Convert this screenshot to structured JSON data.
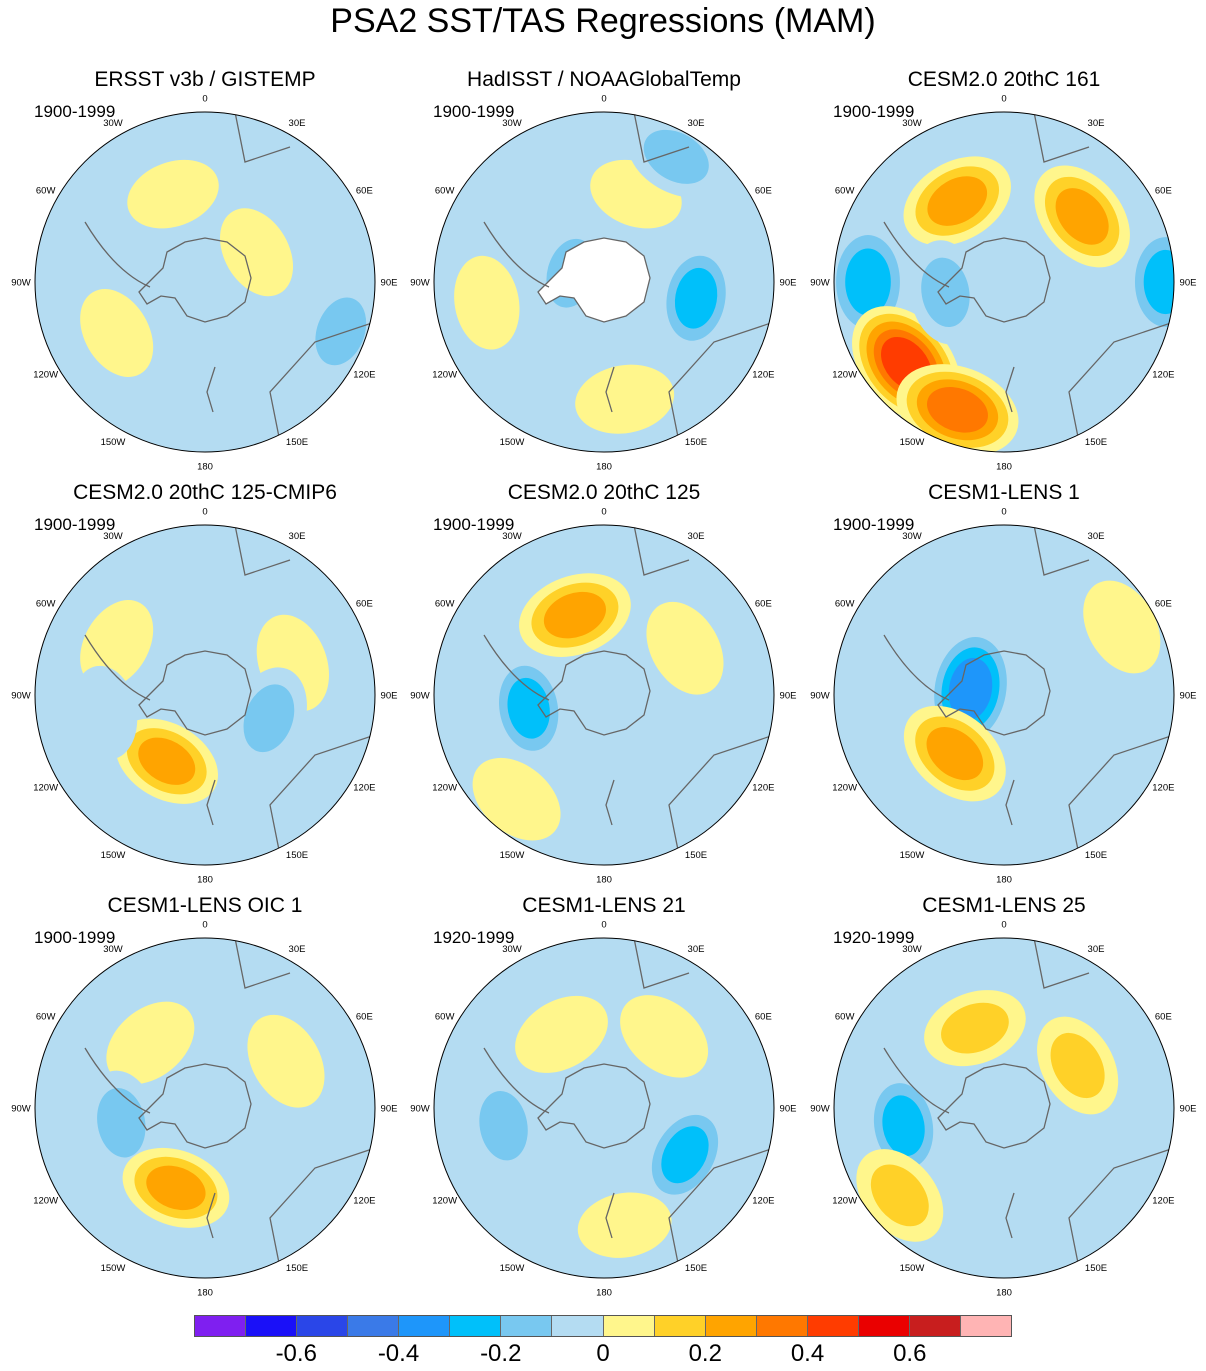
{
  "title": "PSA2 SST/TAS Regressions (MAM)",
  "panels": [
    {
      "title": "ERSST v3b / GISTEMP",
      "period": "1900-1999",
      "blobs": [
        {
          "lon": -20,
          "r": 0.55,
          "v": 0.1
        },
        {
          "lon": 60,
          "r": 0.35,
          "v": 0.1
        },
        {
          "lon": -120,
          "r": 0.6,
          "v": 0.1
        },
        {
          "lon": 110,
          "r": 0.85,
          "v": -0.2
        },
        {
          "lon": 170,
          "r": 0.8,
          "v": -0.1
        }
      ]
    },
    {
      "title": "HadISST / NOAAGlobalTemp",
      "period": "1900-1999",
      "blobs": [
        {
          "lon": 20,
          "r": 0.55,
          "v": 0.1
        },
        {
          "lon": 30,
          "r": 0.85,
          "v": -0.2
        },
        {
          "lon": 100,
          "r": 0.55,
          "v": -0.25
        },
        {
          "lon": -100,
          "r": 0.7,
          "v": 0.1
        },
        {
          "lon": 170,
          "r": 0.7,
          "v": 0.15
        },
        {
          "lon": -75,
          "r": 0.2,
          "v": -0.2
        }
      ]
    },
    {
      "title": "CESM2.0 20thC 161",
      "period": "1900-1999",
      "blobs": [
        {
          "lon": -30,
          "r": 0.55,
          "v": 0.3
        },
        {
          "lon": 50,
          "r": 0.6,
          "v": 0.3
        },
        {
          "lon": -90,
          "r": 0.8,
          "v": -0.35
        },
        {
          "lon": -130,
          "r": 0.75,
          "v": 0.45
        },
        {
          "lon": -160,
          "r": 0.8,
          "v": 0.4
        },
        {
          "lon": 90,
          "r": 0.95,
          "v": -0.3
        },
        {
          "lon": -100,
          "r": 0.35,
          "v": -0.2
        }
      ]
    },
    {
      "title": "CESM2.0 20thC 125-CMIP6",
      "period": "1900-1999",
      "blobs": [
        {
          "lon": -60,
          "r": 0.6,
          "v": 0.1
        },
        {
          "lon": 70,
          "r": 0.55,
          "v": 0.15
        },
        {
          "lon": -150,
          "r": 0.45,
          "v": 0.25
        },
        {
          "lon": 110,
          "r": 0.4,
          "v": -0.2
        },
        {
          "lon": -100,
          "r": 0.6,
          "v": -0.1
        },
        {
          "lon": 160,
          "r": 0.8,
          "v": -0.1
        }
      ]
    },
    {
      "title": "CESM2.0 20thC 125",
      "period": "1900-1999",
      "blobs": [
        {
          "lon": -20,
          "r": 0.5,
          "v": 0.3
        },
        {
          "lon": 60,
          "r": 0.55,
          "v": 0.15
        },
        {
          "lon": -100,
          "r": 0.45,
          "v": -0.25
        },
        {
          "lon": -140,
          "r": 0.8,
          "v": 0.15
        },
        {
          "lon": 90,
          "r": 0.9,
          "v": -0.1
        }
      ]
    },
    {
      "title": "CESM1-LENS 1",
      "period": "1900-1999",
      "blobs": [
        {
          "lon": -80,
          "r": 0.2,
          "v": -0.4
        },
        {
          "lon": -140,
          "r": 0.45,
          "v": 0.3
        },
        {
          "lon": 60,
          "r": 0.8,
          "v": 0.15
        },
        {
          "lon": -80,
          "r": 0.7,
          "v": -0.1
        },
        {
          "lon": 140,
          "r": 0.75,
          "v": -0.15
        }
      ]
    },
    {
      "title": "CESM1-LENS OIC 1",
      "period": "1900-1999",
      "blobs": [
        {
          "lon": -40,
          "r": 0.5,
          "v": 0.15
        },
        {
          "lon": -100,
          "r": 0.5,
          "v": -0.2
        },
        {
          "lon": -160,
          "r": 0.5,
          "v": 0.25
        },
        {
          "lon": 60,
          "r": 0.55,
          "v": 0.15
        },
        {
          "lon": 110,
          "r": 0.8,
          "v": -0.1
        }
      ]
    },
    {
      "title": "CESM1-LENS 21",
      "period": "1920-1999",
      "blobs": [
        {
          "lon": -30,
          "r": 0.5,
          "v": 0.15
        },
        {
          "lon": -100,
          "r": 0.6,
          "v": -0.2
        },
        {
          "lon": 120,
          "r": 0.55,
          "v": -0.25
        },
        {
          "lon": 40,
          "r": 0.55,
          "v": 0.15
        },
        {
          "lon": 170,
          "r": 0.7,
          "v": 0.1
        }
      ]
    },
    {
      "title": "CESM1-LENS 25",
      "period": "1920-1999",
      "blobs": [
        {
          "lon": -20,
          "r": 0.5,
          "v": 0.2
        },
        {
          "lon": -100,
          "r": 0.6,
          "v": -0.25
        },
        {
          "lon": -130,
          "r": 0.8,
          "v": 0.2
        },
        {
          "lon": 60,
          "r": 0.5,
          "v": 0.2
        },
        {
          "lon": 100,
          "r": 0.85,
          "v": -0.1
        }
      ]
    }
  ],
  "longitude_labels": [
    {
      "lon": 0,
      "text": "0"
    },
    {
      "lon": 30,
      "text": "30E"
    },
    {
      "lon": 60,
      "text": "60E"
    },
    {
      "lon": 90,
      "text": "90E"
    },
    {
      "lon": 120,
      "text": "120E"
    },
    {
      "lon": 150,
      "text": "150E"
    },
    {
      "lon": 180,
      "text": "180"
    },
    {
      "lon": -150,
      "text": "150W"
    },
    {
      "lon": -120,
      "text": "120W"
    },
    {
      "lon": -90,
      "text": "90W"
    },
    {
      "lon": -60,
      "text": "60W"
    },
    {
      "lon": -30,
      "text": "30W"
    }
  ],
  "colorbar": {
    "colors": [
      "#7f1ff0",
      "#1a10f8",
      "#2a46e8",
      "#3a7ae8",
      "#1e96fa",
      "#00c0fa",
      "#78c8f0",
      "#b4dcf2",
      "#fff68c",
      "#ffd128",
      "#ffa400",
      "#ff7800",
      "#ff3c00",
      "#ea0000",
      "#c81e1e",
      "#ffb4b4"
    ],
    "levels": [
      -0.7,
      -0.6,
      -0.5,
      -0.4,
      -0.3,
      -0.2,
      -0.1,
      0,
      0.1,
      0.2,
      0.3,
      0.4,
      0.5,
      0.6,
      0.7
    ],
    "tick_labels": [
      {
        "value": -0.6,
        "text": "-0.6"
      },
      {
        "value": -0.4,
        "text": "-0.4"
      },
      {
        "value": -0.2,
        "text": "-0.2"
      },
      {
        "value": 0,
        "text": "0"
      },
      {
        "value": 0.2,
        "text": "0.2"
      },
      {
        "value": 0.4,
        "text": "0.4"
      },
      {
        "value": 0.6,
        "text": "0.6"
      }
    ]
  }
}
